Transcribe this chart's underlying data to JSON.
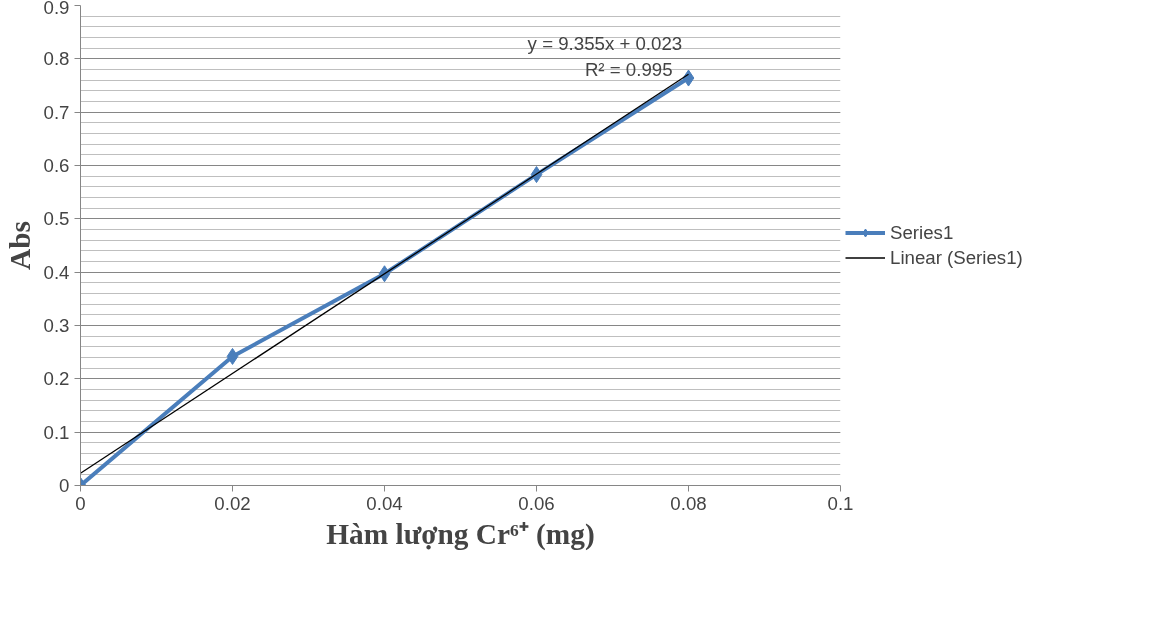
{
  "chart_data": {
    "type": "line",
    "xlabel": "Hàm lượng Cr⁶⁺ (mg)",
    "ylabel": "Abs",
    "series": [
      {
        "name": "Series1",
        "color": "#4a7ebb",
        "marker": "diamond",
        "x": [
          0,
          0.02,
          0.04,
          0.06,
          0.08
        ],
        "values": [
          0,
          0.242,
          0.397,
          0.583,
          0.764
        ]
      },
      {
        "name": "Linear (Series1)",
        "color": "#000000",
        "marker": "none",
        "x": [
          0,
          0.08
        ],
        "values": [
          0.023,
          0.771
        ]
      }
    ],
    "annotations": [
      "y = 9.355x + 0.023",
      "R² = 0.995"
    ],
    "xlim": [
      0,
      0.1
    ],
    "xticks": [
      0,
      0.02,
      0.04,
      0.06,
      0.08,
      0.1
    ],
    "ylim": [
      0,
      0.9
    ],
    "yticks": [
      0,
      0.1,
      0.2,
      0.3,
      0.4,
      0.5,
      0.6,
      0.7,
      0.8,
      0.9
    ],
    "grid": "y",
    "legend": "right",
    "line_style": "solid"
  }
}
